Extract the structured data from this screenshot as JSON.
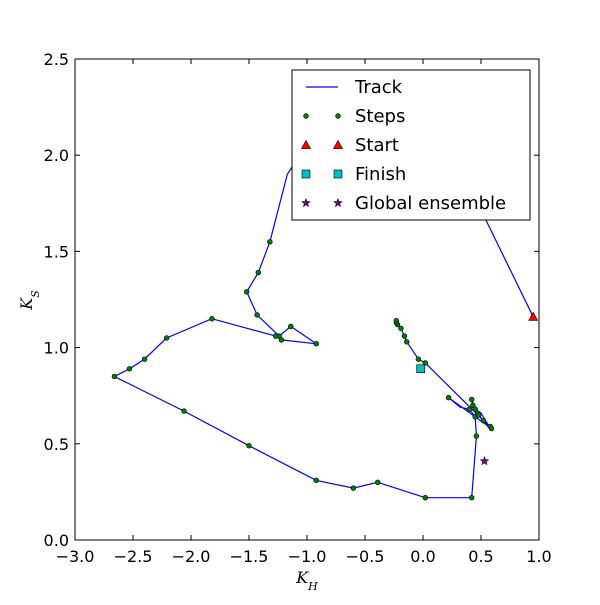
{
  "chart_data": {
    "type": "line",
    "title": "",
    "xlabel": "K_H",
    "ylabel": "K_S",
    "xlim": [
      -3.0,
      1.0
    ],
    "ylim": [
      0.0,
      2.5
    ],
    "xticks": [
      -3.0,
      -2.5,
      -2.0,
      -1.5,
      -1.0,
      -0.5,
      0.0,
      0.5,
      1.0
    ],
    "yticks": [
      0.0,
      0.5,
      1.0,
      1.5,
      2.0,
      2.5
    ],
    "xtick_labels": [
      "−3.0",
      "−2.5",
      "−2.0",
      "−1.5",
      "−1.0",
      "−0.5",
      "0.0",
      "0.5",
      "1.0"
    ],
    "ytick_labels": [
      "0.0",
      "0.5",
      "1.0",
      "1.5",
      "2.0",
      "2.5"
    ],
    "grid": false,
    "legend_position": "upper-right",
    "colors": {
      "track": "#0000ff",
      "steps": "#008000",
      "start": "#ff0000",
      "finish": "#00bfbf",
      "global": "#7f007f"
    },
    "series": [
      {
        "name": "Track",
        "kind": "line",
        "x": [
          0.95,
          0.35,
          -0.5,
          -0.9,
          -1.17,
          -1.32,
          -1.42,
          -1.52,
          -1.43,
          -1.24,
          -1.14,
          -0.92,
          -1.22,
          -1.27,
          -1.82,
          -2.21,
          -2.4,
          -2.53,
          -2.66,
          -2.06,
          -1.5,
          -0.92,
          -0.6,
          -0.39,
          0.02,
          0.42,
          0.46,
          0.45,
          0.4,
          0.32,
          0.22,
          0.59,
          0.58,
          0.56,
          0.52,
          0.5,
          0.47,
          0.45,
          0.43,
          0.42,
          0.43,
          0.45,
          0.47,
          0.48,
          0.52,
          0.56,
          0.59,
          0.02,
          -0.04,
          -0.14,
          -0.16,
          -0.19,
          -0.22,
          -0.23,
          -0.23,
          -0.22,
          -0.19,
          -0.16,
          -0.14,
          -0.04,
          0.02,
          -0.02
        ],
        "y": [
          1.16,
          1.9,
          2.25,
          2.15,
          1.9,
          1.55,
          1.39,
          1.29,
          1.17,
          1.06,
          1.11,
          1.02,
          1.04,
          1.06,
          1.15,
          1.05,
          0.94,
          0.89,
          0.85,
          0.67,
          0.49,
          0.31,
          0.27,
          0.3,
          0.22,
          0.22,
          0.54,
          0.64,
          0.68,
          0.69,
          0.74,
          0.58,
          0.59,
          0.6,
          0.64,
          0.66,
          0.67,
          0.69,
          0.71,
          0.73,
          0.7,
          0.68,
          0.66,
          0.65,
          0.62,
          0.59,
          0.58,
          0.92,
          0.94,
          1.03,
          1.06,
          1.1,
          1.12,
          1.13,
          1.14,
          1.12,
          1.1,
          1.06,
          1.03,
          0.94,
          0.92,
          0.89
        ]
      },
      {
        "name": "Steps",
        "kind": "points",
        "x": [
          -1.32,
          -1.42,
          -1.52,
          -1.43,
          -1.24,
          -1.14,
          -0.92,
          -1.22,
          -1.27,
          -1.82,
          -2.21,
          -2.4,
          -2.53,
          -2.66,
          -2.06,
          -1.5,
          -0.92,
          -0.6,
          -0.39,
          0.02,
          0.42,
          0.46,
          0.45,
          0.42,
          0.43,
          0.45,
          0.47,
          0.48,
          0.52,
          0.58,
          0.59,
          0.4,
          0.22,
          -0.04,
          0.02,
          -0.14,
          -0.16,
          -0.19,
          -0.22,
          -0.23,
          -0.23
        ],
        "y": [
          1.55,
          1.39,
          1.29,
          1.17,
          1.06,
          1.11,
          1.02,
          1.04,
          1.06,
          1.15,
          1.05,
          0.94,
          0.89,
          0.85,
          0.67,
          0.49,
          0.31,
          0.27,
          0.3,
          0.22,
          0.22,
          0.54,
          0.64,
          0.73,
          0.7,
          0.68,
          0.66,
          0.65,
          0.62,
          0.59,
          0.58,
          0.68,
          0.74,
          0.94,
          0.92,
          1.03,
          1.06,
          1.1,
          1.12,
          1.13,
          1.14
        ]
      },
      {
        "name": "Start",
        "kind": "marker",
        "x": [
          0.95
        ],
        "y": [
          1.16
        ]
      },
      {
        "name": "Finish",
        "kind": "marker",
        "x": [
          -0.02
        ],
        "y": [
          0.89
        ]
      },
      {
        "name": "Global ensemble",
        "kind": "marker",
        "x": [
          0.53
        ],
        "y": [
          0.41
        ]
      }
    ]
  }
}
